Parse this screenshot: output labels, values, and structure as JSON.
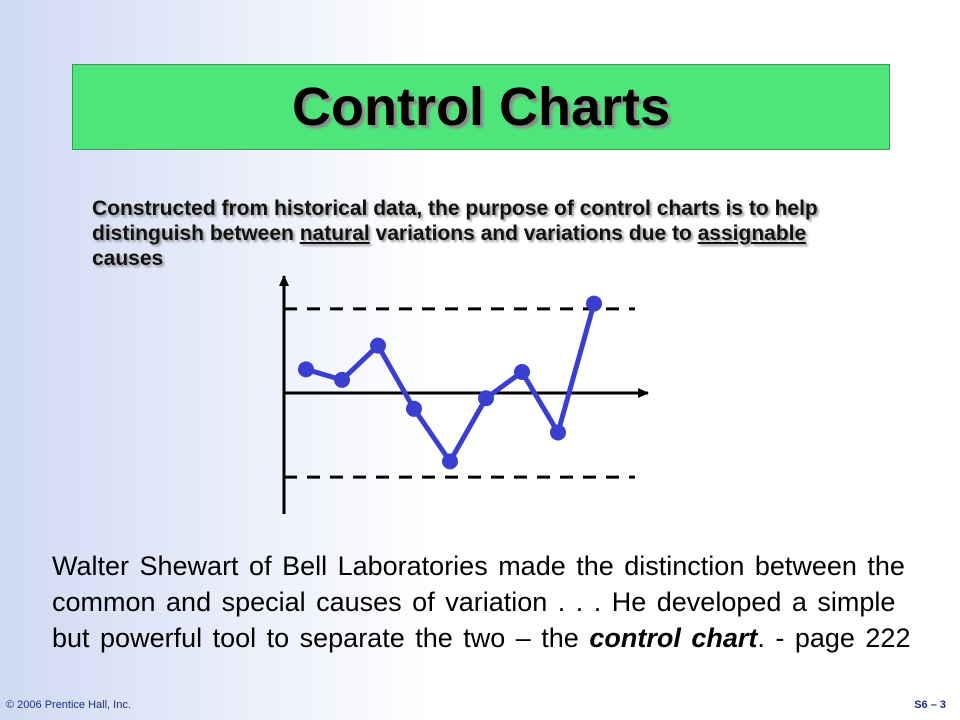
{
  "slide": {
    "title": "Control Charts",
    "intro": {
      "part1": "Constructed from historical data, the purpose of control charts is to help distinguish between ",
      "natural": "natural",
      "part2": " variations and variations due to ",
      "assignable": "assignable",
      "part3": " causes"
    },
    "body": {
      "part1": "Walter Shewart of Bell Laboratories made the distinction between the common and special causes of variation . . . He developed a simple but powerful tool to separate the two – the ",
      "emphasis": "control chart",
      "part2": ".       - page 222"
    },
    "footer": {
      "copyright": "© 2006 Prentice Hall, Inc.",
      "page": "S6 – 3"
    }
  },
  "colors": {
    "title_bg": "#4ee67a",
    "line": "#3a3fd0",
    "axis": "#000000"
  },
  "chart_data": {
    "type": "line",
    "x": [
      1,
      2,
      3,
      4,
      5,
      6,
      7,
      8,
      9
    ],
    "values": [
      0.45,
      0.25,
      0.9,
      -0.3,
      -1.3,
      -0.1,
      0.4,
      -0.75,
      1.7
    ],
    "center_line": 0,
    "upper_control_limit": 1.6,
    "lower_control_limit": -1.6,
    "ylim": [
      -2.3,
      2.3
    ],
    "xlim": [
      0,
      10
    ],
    "title": "",
    "xlabel": "",
    "ylabel": ""
  }
}
